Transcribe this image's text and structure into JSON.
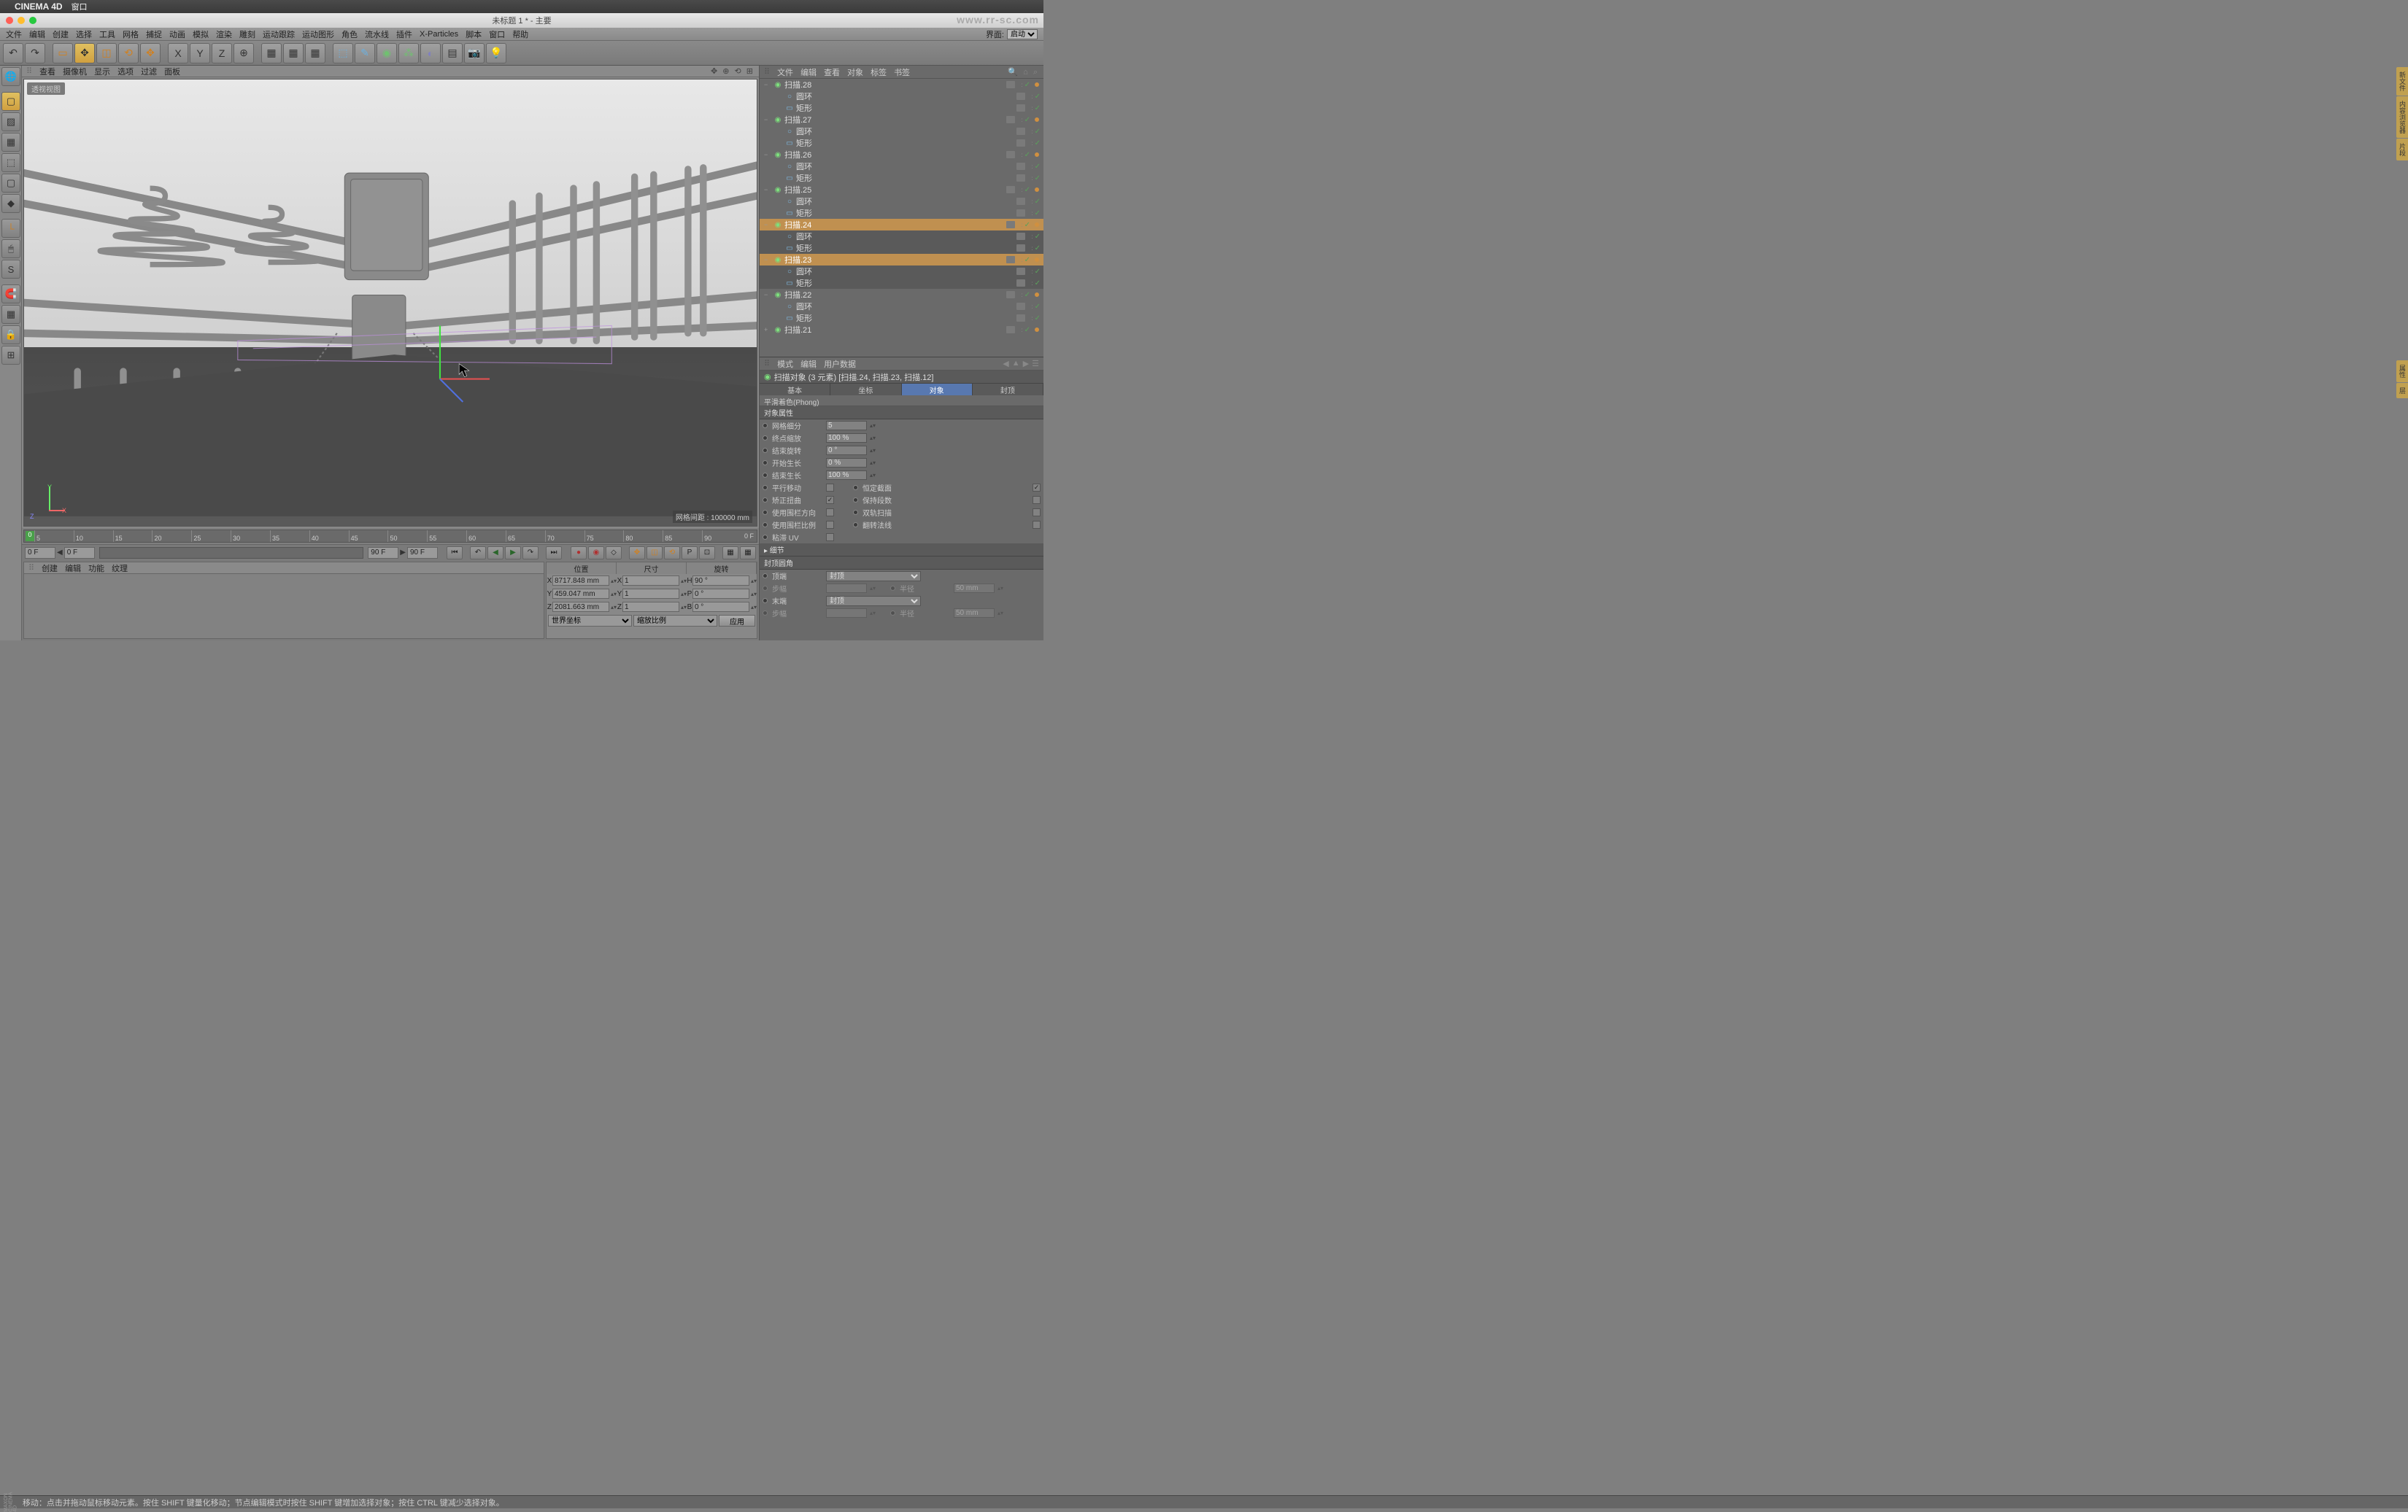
{
  "macos_menu": {
    "apple": "",
    "app": "CINEMA 4D",
    "window": "窗口"
  },
  "window": {
    "title": "未标题 1 * - 主要",
    "watermark": "www.rr-sc.com"
  },
  "app_menu": [
    "文件",
    "编辑",
    "创建",
    "选择",
    "工具",
    "网格",
    "捕捉",
    "动画",
    "模拟",
    "渲染",
    "雕刻",
    "运动跟踪",
    "运动图形",
    "角色",
    "流水线",
    "插件",
    "X-Particles",
    "脚本",
    "窗口",
    "帮助"
  ],
  "layout": {
    "label": "界面:",
    "value": "启动"
  },
  "viewport_menu": [
    "查看",
    "摄像机",
    "显示",
    "选项",
    "过滤",
    "面板"
  ],
  "viewport": {
    "label": "透视视图",
    "grid_info": "网格间距 : 100000 mm"
  },
  "timeline": {
    "start": "0",
    "ticks": [
      "5",
      "10",
      "15",
      "20",
      "25",
      "30",
      "35",
      "40",
      "45",
      "50",
      "55",
      "60",
      "65",
      "70",
      "75",
      "80",
      "85",
      "90"
    ],
    "end_label": "0 F"
  },
  "playback": {
    "start": "0 F",
    "cur": "0 F",
    "end1": "90 F",
    "end2": "90 F"
  },
  "materials_menu": [
    "创建",
    "编辑",
    "功能",
    "纹理"
  ],
  "coords": {
    "headers": [
      "位置",
      "尺寸",
      "旋转"
    ],
    "rows": [
      {
        "axis": "X",
        "pos": "8717.848 mm",
        "size": "1",
        "rot": "90 °"
      },
      {
        "axis": "Y",
        "pos": "459.047 mm",
        "size": "1",
        "rot": "0 °"
      },
      {
        "axis": "Z",
        "pos": "2081.663 mm",
        "size": "1",
        "rot": "0 °"
      }
    ],
    "space": "世界坐标",
    "scale": "缩放比例",
    "apply": "应用"
  },
  "obj_menu": [
    "文件",
    "编辑",
    "查看",
    "对象",
    "标签",
    "书签"
  ],
  "tree": [
    {
      "d": 0,
      "tw": "−",
      "t": "sweep",
      "n": "扫描.28",
      "sel": false
    },
    {
      "d": 1,
      "tw": "",
      "t": "circle",
      "n": "圆环",
      "sel": false
    },
    {
      "d": 1,
      "tw": "",
      "t": "rect",
      "n": "矩形",
      "sel": false
    },
    {
      "d": 0,
      "tw": "−",
      "t": "sweep",
      "n": "扫描.27",
      "sel": false
    },
    {
      "d": 1,
      "tw": "",
      "t": "circle",
      "n": "圆环",
      "sel": false
    },
    {
      "d": 1,
      "tw": "",
      "t": "rect",
      "n": "矩形",
      "sel": false
    },
    {
      "d": 0,
      "tw": "−",
      "t": "sweep",
      "n": "扫描.26",
      "sel": false
    },
    {
      "d": 1,
      "tw": "",
      "t": "circle",
      "n": "圆环",
      "sel": false
    },
    {
      "d": 1,
      "tw": "",
      "t": "rect",
      "n": "矩形",
      "sel": false
    },
    {
      "d": 0,
      "tw": "−",
      "t": "sweep",
      "n": "扫描.25",
      "sel": false
    },
    {
      "d": 1,
      "tw": "",
      "t": "circle",
      "n": "圆环",
      "sel": false
    },
    {
      "d": 1,
      "tw": "",
      "t": "rect",
      "n": "矩形",
      "sel": false
    },
    {
      "d": 0,
      "tw": "−",
      "t": "sweep",
      "n": "扫描.24",
      "sel": true
    },
    {
      "d": 1,
      "tw": "",
      "t": "circle",
      "n": "圆环",
      "sel": false,
      "cs": true
    },
    {
      "d": 1,
      "tw": "",
      "t": "rect",
      "n": "矩形",
      "sel": false,
      "cs": true
    },
    {
      "d": 0,
      "tw": "−",
      "t": "sweep",
      "n": "扫描.23",
      "sel": true
    },
    {
      "d": 1,
      "tw": "",
      "t": "circle",
      "n": "圆环",
      "sel": false,
      "cs": true
    },
    {
      "d": 1,
      "tw": "",
      "t": "rect",
      "n": "矩形",
      "sel": false,
      "cs": true
    },
    {
      "d": 0,
      "tw": "−",
      "t": "sweep",
      "n": "扫描.22",
      "sel": false
    },
    {
      "d": 1,
      "tw": "",
      "t": "circle",
      "n": "圆环",
      "sel": false
    },
    {
      "d": 1,
      "tw": "",
      "t": "rect",
      "n": "矩形",
      "sel": false
    },
    {
      "d": 0,
      "tw": "+",
      "t": "sweep",
      "n": "扫描.21",
      "sel": false
    }
  ],
  "attr_menu": [
    "模式",
    "编辑",
    "用户数据"
  ],
  "attr": {
    "title": "扫描对象 (3 元素) [扫描.24, 扫描.23, 扫描.12]",
    "tabs": [
      "基本",
      "坐标",
      "对象",
      "封顶"
    ],
    "active_tab": 2,
    "sub": "平滑着色(Phong)",
    "section1": "对象属性",
    "rows1": [
      {
        "l": "网格细分",
        "v": "5"
      },
      {
        "l": "终点缩放",
        "v": "100 %"
      },
      {
        "l": "结束旋转",
        "v": "0 °"
      },
      {
        "l": "开始生长",
        "v": "0 %"
      },
      {
        "l": "结束生长",
        "v": "100 %"
      }
    ],
    "checks": [
      {
        "l1": "平行移动",
        "c1": false,
        "l2": "恒定截面",
        "c2": true
      },
      {
        "l1": "矫正扭曲",
        "c1": true,
        "l2": "保持段数",
        "c2": false
      },
      {
        "l1": "使用围栏方向",
        "c1": false,
        "l2": "双轨扫描",
        "c2": false
      },
      {
        "l1": "使用围栏比例",
        "c1": false,
        "l2": "翻转法线",
        "c2": false
      }
    ],
    "uv_row": {
      "l": "粘滞 UV",
      "c": false
    },
    "detail": "▸ 细节",
    "section2": "封顶圆角",
    "cap_rows": [
      {
        "l": "顶端",
        "sel": "封顶",
        "en": true
      },
      {
        "l": "步幅",
        "v": "",
        "en": false,
        "l2": "半径",
        "v2": "50 mm"
      },
      {
        "l": "末端",
        "sel": "封顶",
        "en": true
      },
      {
        "l": "步幅",
        "v": "",
        "en": false,
        "l2": "半径",
        "v2": "50 mm"
      }
    ]
  },
  "statusbar": {
    "logo": "MAXON CINEMA 4D",
    "text": "移动：点击并拖动鼠标移动元素。按住 SHIFT 键量化移动；节点编辑模式时按住 SHIFT 键增加选择对象；按住 CTRL 键减少选择对象。"
  },
  "right_tabs": [
    "新文件",
    "内容浏览器",
    "片段"
  ],
  "right_tabs2": [
    "属性",
    "层"
  ]
}
